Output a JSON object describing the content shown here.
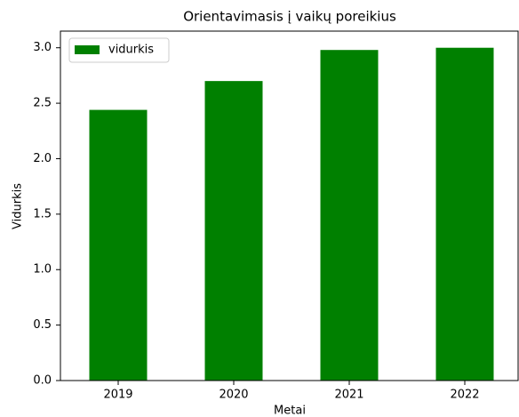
{
  "chart_data": {
    "type": "bar",
    "title": "Orientavimasis į vaikų poreikius",
    "x_label": "Metai",
    "y_label": "Vidurkis",
    "categories": [
      "2019",
      "2020",
      "2021",
      "2022"
    ],
    "series": [
      {
        "name": "vidurkis",
        "color": "#008000",
        "values": [
          2.44,
          2.7,
          2.98,
          3.0
        ]
      }
    ],
    "ylim": [
      0,
      3.15
    ],
    "yticks": [
      {
        "value": 0,
        "label": "0.0"
      },
      0.5,
      {
        "value": 1,
        "label": "1.0"
      },
      1.5,
      {
        "value": 2,
        "label": "2.0"
      },
      2.5,
      {
        "value": 3,
        "label": "3.0"
      }
    ],
    "legend": "upper left",
    "grid": false
  }
}
